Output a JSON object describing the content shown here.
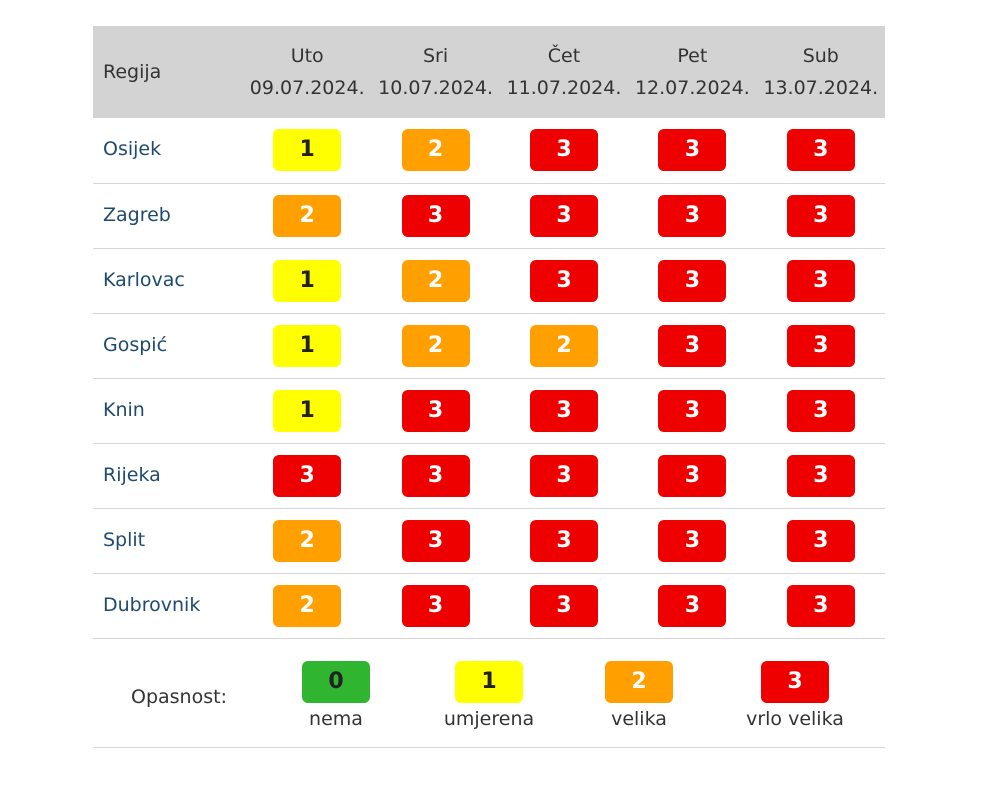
{
  "table": {
    "region_header": "Regija",
    "days": [
      {
        "day": "Uto",
        "date": "09.07.2024."
      },
      {
        "day": "Sri",
        "date": "10.07.2024."
      },
      {
        "day": "Čet",
        "date": "11.07.2024."
      },
      {
        "day": "Pet",
        "date": "12.07.2024."
      },
      {
        "day": "Sub",
        "date": "13.07.2024."
      }
    ],
    "rows": [
      {
        "region": "Osijek",
        "levels": [
          "1",
          "2",
          "3",
          "3",
          "3"
        ]
      },
      {
        "region": "Zagreb",
        "levels": [
          "2",
          "3",
          "3",
          "3",
          "3"
        ]
      },
      {
        "region": "Karlovac",
        "levels": [
          "1",
          "2",
          "3",
          "3",
          "3"
        ]
      },
      {
        "region": "Gospić",
        "levels": [
          "1",
          "2",
          "2",
          "3",
          "3"
        ]
      },
      {
        "region": "Knin",
        "levels": [
          "1",
          "3",
          "3",
          "3",
          "3"
        ]
      },
      {
        "region": "Rijeka",
        "levels": [
          "3",
          "3",
          "3",
          "3",
          "3"
        ]
      },
      {
        "region": "Split",
        "levels": [
          "2",
          "3",
          "3",
          "3",
          "3"
        ]
      },
      {
        "region": "Dubrovnik",
        "levels": [
          "2",
          "3",
          "3",
          "3",
          "3"
        ]
      }
    ]
  },
  "legend": {
    "label": "Opasnost:",
    "items": [
      {
        "level": "0",
        "text": "nema",
        "color": "#30b530"
      },
      {
        "level": "1",
        "text": "umjerena",
        "color": "#ffff00"
      },
      {
        "level": "2",
        "text": "velika",
        "color": "#ff9f00"
      },
      {
        "level": "3",
        "text": "vrlo velika",
        "color": "#ee0000"
      }
    ]
  },
  "colors": {
    "header_bg": "#d3d3d3",
    "region_text": "#1d4a6e",
    "level_0": "#30b530",
    "level_1": "#ffff00",
    "level_2": "#ff9f00",
    "level_3": "#ee0000"
  }
}
